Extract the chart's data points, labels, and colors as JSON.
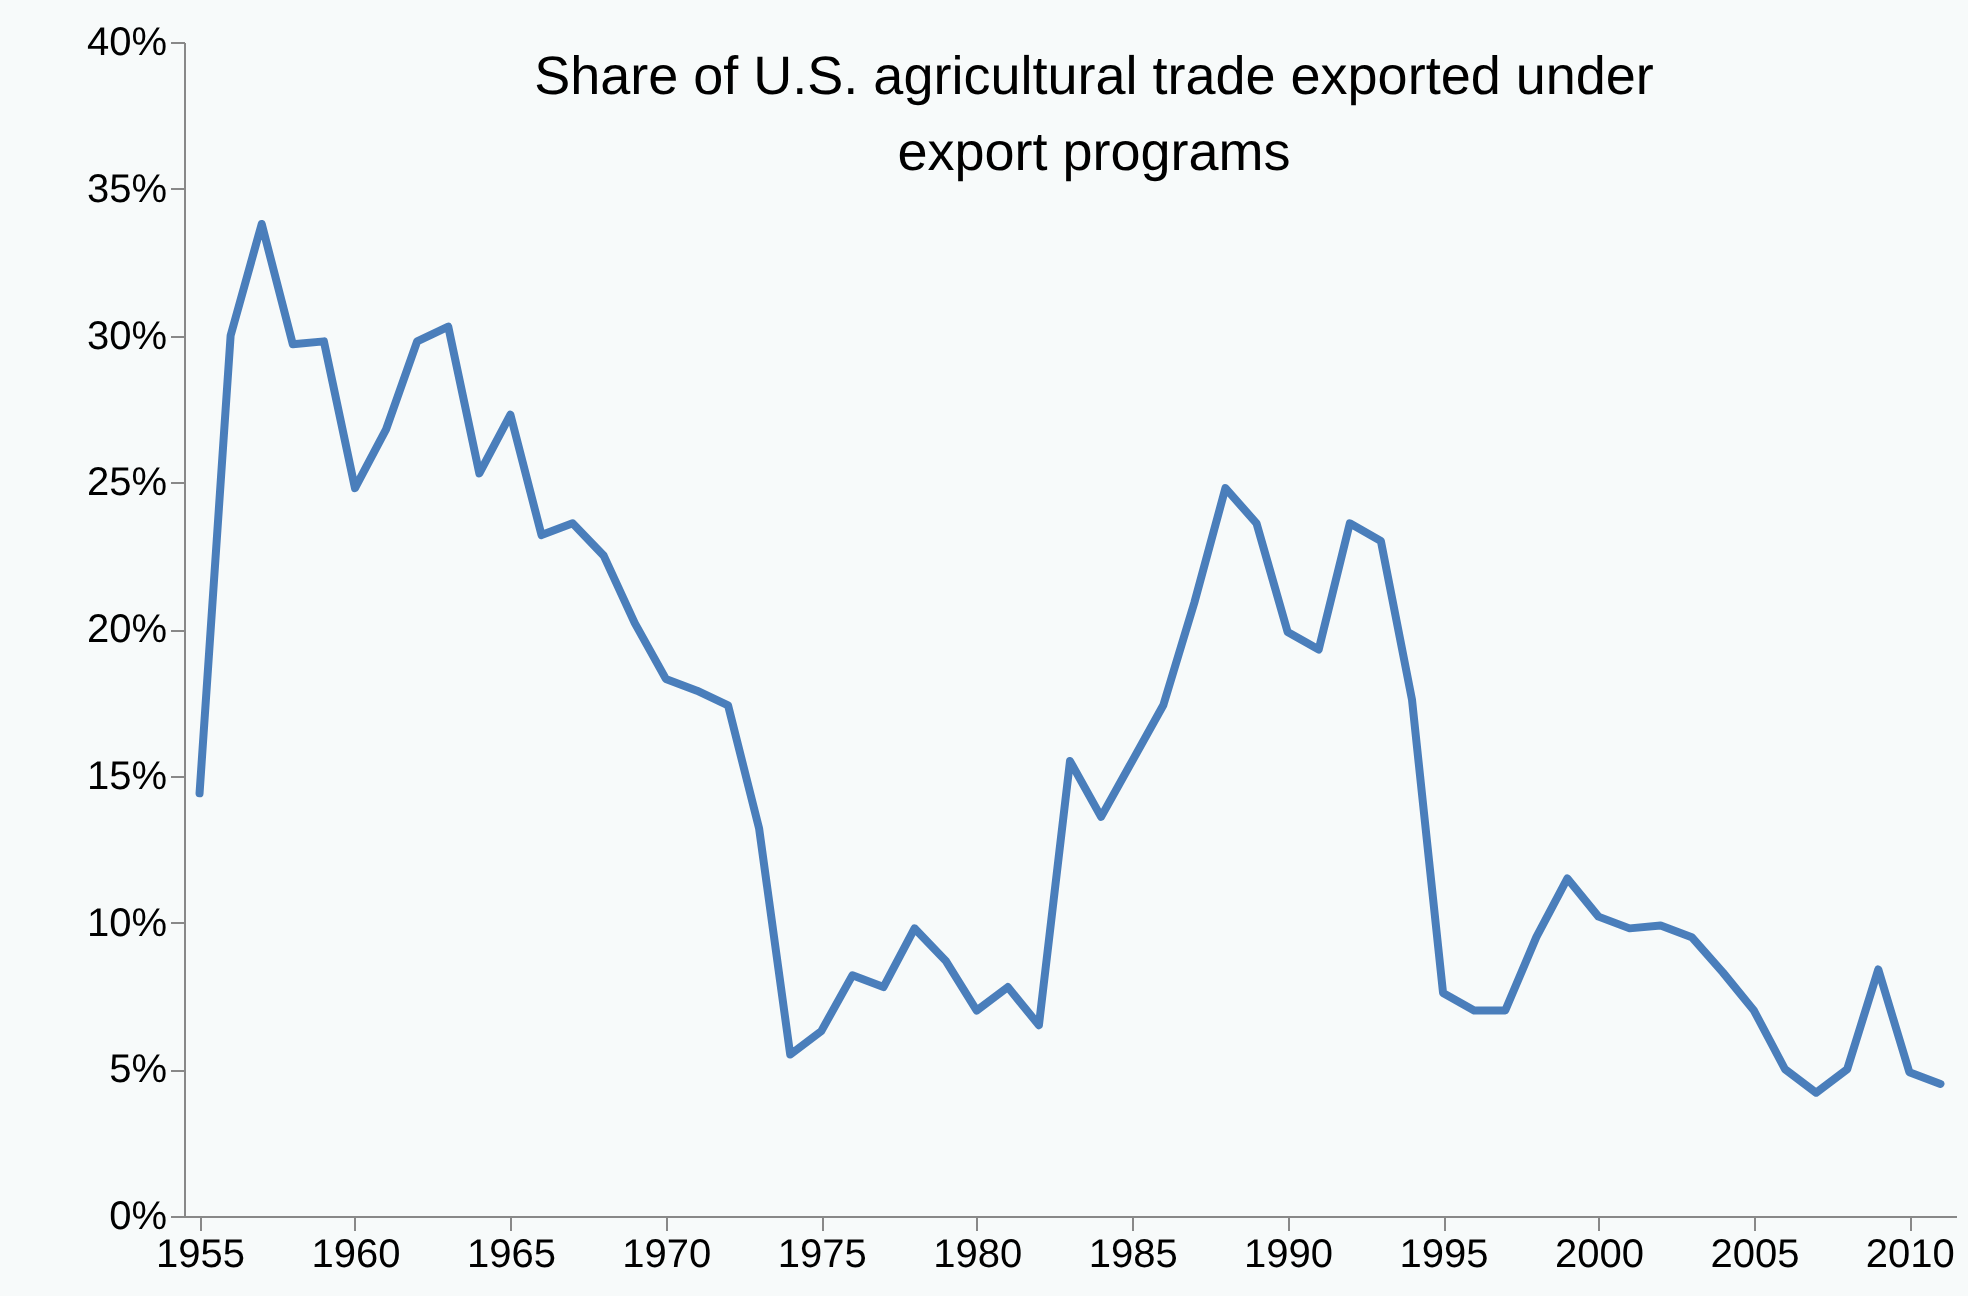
{
  "chart_data": {
    "type": "line",
    "title": [
      "Share of U.S. agricultural  trade exported under",
      "export programs"
    ],
    "x": [
      1955,
      1956,
      1957,
      1958,
      1959,
      1960,
      1961,
      1962,
      1963,
      1964,
      1965,
      1966,
      1967,
      1968,
      1969,
      1970,
      1971,
      1972,
      1973,
      1974,
      1975,
      1976,
      1977,
      1978,
      1979,
      1980,
      1981,
      1982,
      1983,
      1984,
      1985,
      1986,
      1987,
      1988,
      1989,
      1990,
      1991,
      1992,
      1993,
      1994,
      1995,
      1996,
      1997,
      1998,
      1999,
      2000,
      2001,
      2002,
      2003,
      2004,
      2005,
      2006,
      2007,
      2008,
      2009,
      2010,
      2011
    ],
    "series": [
      {
        "color": "#4a7ebb",
        "values": [
          14.4,
          30.0,
          33.8,
          29.7,
          29.8,
          24.8,
          26.8,
          29.8,
          30.3,
          25.3,
          27.3,
          23.2,
          23.6,
          22.5,
          20.2,
          18.3,
          17.9,
          17.4,
          13.2,
          5.5,
          6.3,
          8.2,
          7.8,
          9.8,
          8.7,
          7.0,
          7.8,
          6.5,
          15.5,
          13.6,
          15.5,
          17.4,
          20.9,
          24.8,
          23.6,
          19.9,
          19.3,
          23.6,
          23.0,
          17.6,
          7.6,
          7.0,
          7.0,
          9.5,
          11.5,
          10.2,
          9.8,
          9.9,
          9.5,
          8.3,
          7.0,
          5.0,
          4.2,
          5.0,
          8.4,
          4.9,
          4.5
        ]
      }
    ],
    "xlim": [
      1954.5,
      2011.5
    ],
    "xticks": [
      1955,
      1960,
      1965,
      1970,
      1975,
      1980,
      1985,
      1990,
      1995,
      2000,
      2005,
      2010
    ],
    "ylim": [
      0,
      40
    ],
    "yticks": [
      {
        "value": 0,
        "label": "0%"
      },
      {
        "value": 5,
        "label": "5%"
      },
      {
        "value": 10,
        "label": "10%"
      },
      {
        "value": 15,
        "label": "15%"
      },
      {
        "value": 20,
        "label": "20%"
      },
      {
        "value": 25,
        "label": "25%"
      },
      {
        "value": 30,
        "label": "30%"
      },
      {
        "value": 35,
        "label": "35%"
      },
      {
        "value": 40,
        "label": "40%"
      }
    ],
    "grid": false,
    "legend": false,
    "marker": "none",
    "line_style": "solid"
  }
}
